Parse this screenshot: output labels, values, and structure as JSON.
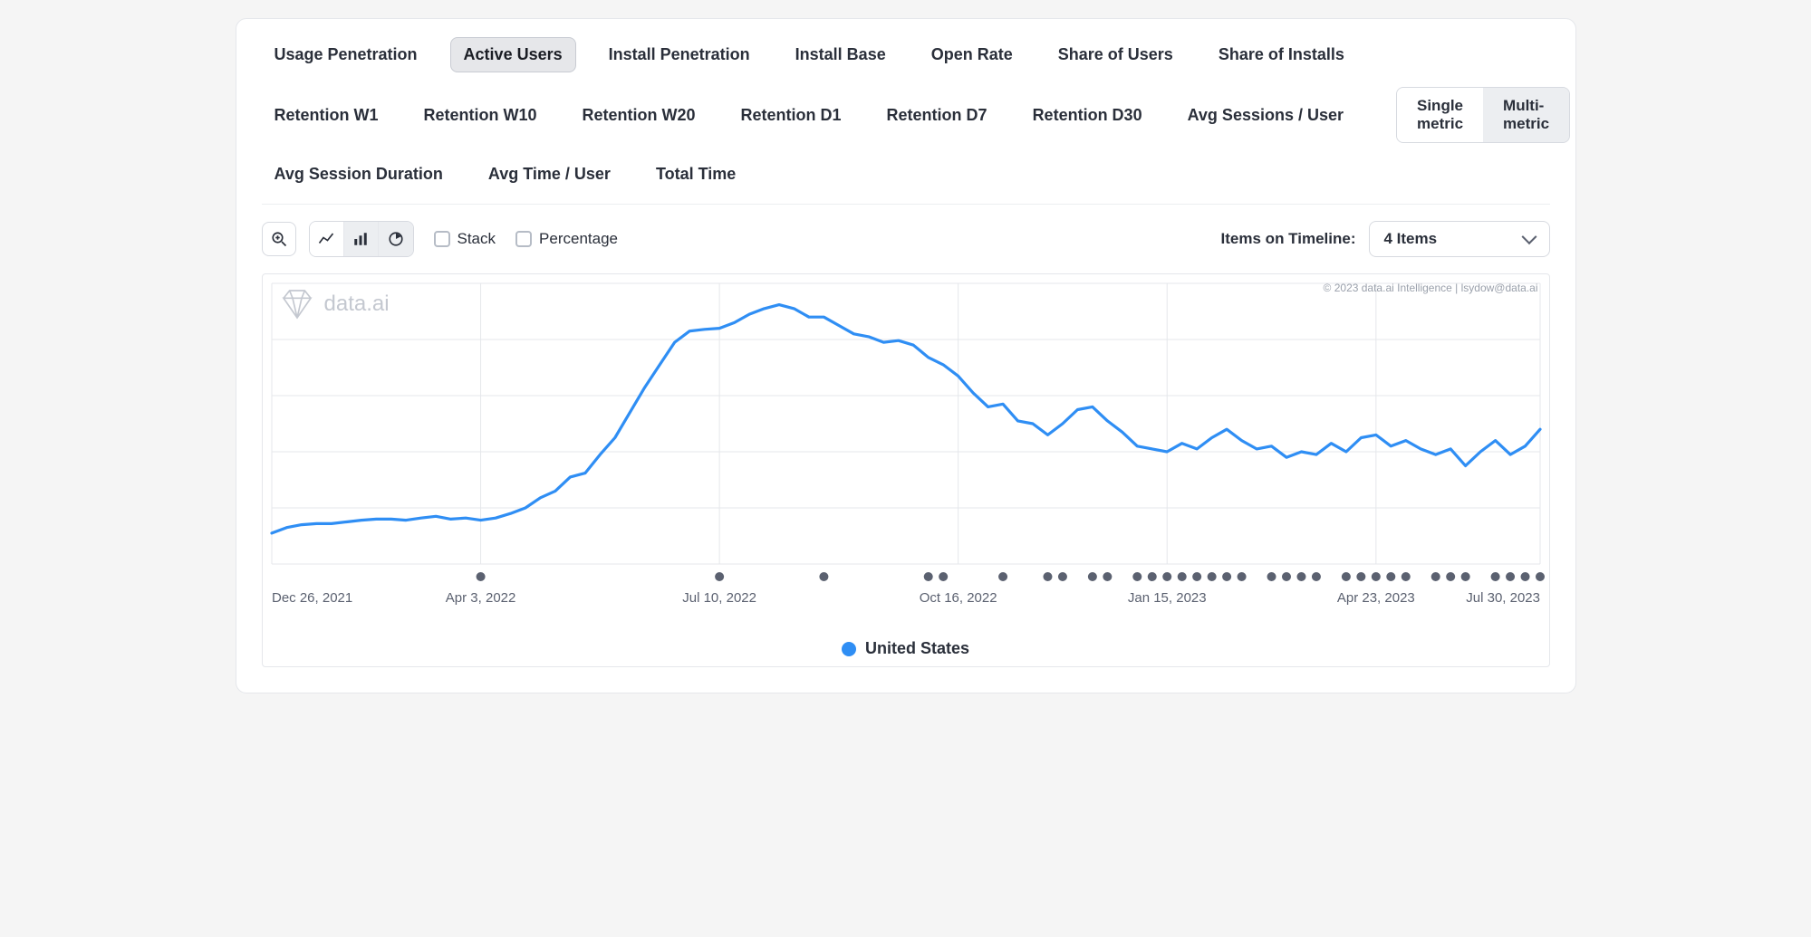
{
  "tabs": {
    "items": [
      "Usage Penetration",
      "Active Users",
      "Install Penetration",
      "Install Base",
      "Open Rate",
      "Share of Users",
      "Share of Installs",
      "Retention W1",
      "Retention W10",
      "Retention W20",
      "Retention D1",
      "Retention D7",
      "Retention D30",
      "Avg Sessions / User",
      "Avg Session Duration",
      "Avg Time / User",
      "Total Time"
    ],
    "active_index": 1
  },
  "mode_toggle": {
    "single": "Single metric",
    "multi": "Multi-metric",
    "active": "single"
  },
  "toolbar": {
    "stack_label": "Stack",
    "percentage_label": "Percentage",
    "timeline_label": "Items on Timeline:",
    "timeline_value": "4 Items"
  },
  "watermark": "data.ai",
  "copyright": "© 2023 data.ai Intelligence | lsydow@data.ai",
  "legend": {
    "label": "United States",
    "color": "#2f8ef4"
  },
  "chart": {
    "type": "line",
    "line_color": "#2f8ef4",
    "line_width": 3.2,
    "background_color": "#ffffff",
    "grid_color": "#e5e7eb",
    "ylim": [
      0,
      5
    ],
    "y_gridlines": [
      0,
      1,
      2,
      3,
      4,
      5
    ],
    "x_range": [
      0,
      85
    ],
    "x_ticks": [
      {
        "pos": 0,
        "label": "Dec 26, 2021"
      },
      {
        "pos": 14,
        "label": "Apr 3, 2022"
      },
      {
        "pos": 30,
        "label": "Jul 10, 2022"
      },
      {
        "pos": 46,
        "label": "Oct 16, 2022"
      },
      {
        "pos": 60,
        "label": "Jan 15, 2023"
      },
      {
        "pos": 74,
        "label": "Apr 23, 2023"
      },
      {
        "pos": 85,
        "label": "Jul 30, 2023"
      }
    ],
    "series": [
      {
        "x": 0,
        "y": 0.55
      },
      {
        "x": 1,
        "y": 0.65
      },
      {
        "x": 2,
        "y": 0.7
      },
      {
        "x": 3,
        "y": 0.72
      },
      {
        "x": 4,
        "y": 0.72
      },
      {
        "x": 5,
        "y": 0.75
      },
      {
        "x": 6,
        "y": 0.78
      },
      {
        "x": 7,
        "y": 0.8
      },
      {
        "x": 8,
        "y": 0.8
      },
      {
        "x": 9,
        "y": 0.78
      },
      {
        "x": 10,
        "y": 0.82
      },
      {
        "x": 11,
        "y": 0.85
      },
      {
        "x": 12,
        "y": 0.8
      },
      {
        "x": 13,
        "y": 0.82
      },
      {
        "x": 14,
        "y": 0.78
      },
      {
        "x": 15,
        "y": 0.82
      },
      {
        "x": 16,
        "y": 0.9
      },
      {
        "x": 17,
        "y": 1.0
      },
      {
        "x": 18,
        "y": 1.18
      },
      {
        "x": 19,
        "y": 1.3
      },
      {
        "x": 20,
        "y": 1.55
      },
      {
        "x": 21,
        "y": 1.62
      },
      {
        "x": 22,
        "y": 1.95
      },
      {
        "x": 23,
        "y": 2.25
      },
      {
        "x": 24,
        "y": 2.7
      },
      {
        "x": 25,
        "y": 3.15
      },
      {
        "x": 26,
        "y": 3.55
      },
      {
        "x": 27,
        "y": 3.95
      },
      {
        "x": 28,
        "y": 4.15
      },
      {
        "x": 29,
        "y": 4.18
      },
      {
        "x": 30,
        "y": 4.2
      },
      {
        "x": 31,
        "y": 4.3
      },
      {
        "x": 32,
        "y": 4.45
      },
      {
        "x": 33,
        "y": 4.55
      },
      {
        "x": 34,
        "y": 4.62
      },
      {
        "x": 35,
        "y": 4.55
      },
      {
        "x": 36,
        "y": 4.4
      },
      {
        "x": 37,
        "y": 4.4
      },
      {
        "x": 38,
        "y": 4.25
      },
      {
        "x": 39,
        "y": 4.1
      },
      {
        "x": 40,
        "y": 4.05
      },
      {
        "x": 41,
        "y": 3.95
      },
      {
        "x": 42,
        "y": 3.98
      },
      {
        "x": 43,
        "y": 3.9
      },
      {
        "x": 44,
        "y": 3.68
      },
      {
        "x": 45,
        "y": 3.55
      },
      {
        "x": 46,
        "y": 3.35
      },
      {
        "x": 47,
        "y": 3.05
      },
      {
        "x": 48,
        "y": 2.8
      },
      {
        "x": 49,
        "y": 2.85
      },
      {
        "x": 50,
        "y": 2.55
      },
      {
        "x": 51,
        "y": 2.5
      },
      {
        "x": 52,
        "y": 2.3
      },
      {
        "x": 53,
        "y": 2.5
      },
      {
        "x": 54,
        "y": 2.75
      },
      {
        "x": 55,
        "y": 2.8
      },
      {
        "x": 56,
        "y": 2.55
      },
      {
        "x": 57,
        "y": 2.35
      },
      {
        "x": 58,
        "y": 2.1
      },
      {
        "x": 59,
        "y": 2.05
      },
      {
        "x": 60,
        "y": 2.0
      },
      {
        "x": 61,
        "y": 2.15
      },
      {
        "x": 62,
        "y": 2.05
      },
      {
        "x": 63,
        "y": 2.25
      },
      {
        "x": 64,
        "y": 2.4
      },
      {
        "x": 65,
        "y": 2.2
      },
      {
        "x": 66,
        "y": 2.05
      },
      {
        "x": 67,
        "y": 2.1
      },
      {
        "x": 68,
        "y": 1.9
      },
      {
        "x": 69,
        "y": 2.0
      },
      {
        "x": 70,
        "y": 1.95
      },
      {
        "x": 71,
        "y": 2.15
      },
      {
        "x": 72,
        "y": 2.0
      },
      {
        "x": 73,
        "y": 2.25
      },
      {
        "x": 74,
        "y": 2.3
      },
      {
        "x": 75,
        "y": 2.1
      },
      {
        "x": 76,
        "y": 2.2
      },
      {
        "x": 77,
        "y": 2.05
      },
      {
        "x": 78,
        "y": 1.95
      },
      {
        "x": 79,
        "y": 2.05
      },
      {
        "x": 80,
        "y": 1.75
      },
      {
        "x": 81,
        "y": 2.0
      },
      {
        "x": 82,
        "y": 2.2
      },
      {
        "x": 83,
        "y": 1.95
      },
      {
        "x": 84,
        "y": 2.1
      },
      {
        "x": 85,
        "y": 2.4
      }
    ],
    "event_markers": {
      "color": "#5b6170",
      "radius": 5,
      "positions": [
        14,
        30,
        37,
        44,
        45,
        49,
        52,
        53,
        55,
        56,
        58,
        59,
        60,
        61,
        62,
        63,
        64,
        65,
        67,
        68,
        69,
        70,
        72,
        73,
        74,
        75,
        76,
        78,
        79,
        80,
        82,
        83,
        84,
        85
      ]
    }
  }
}
